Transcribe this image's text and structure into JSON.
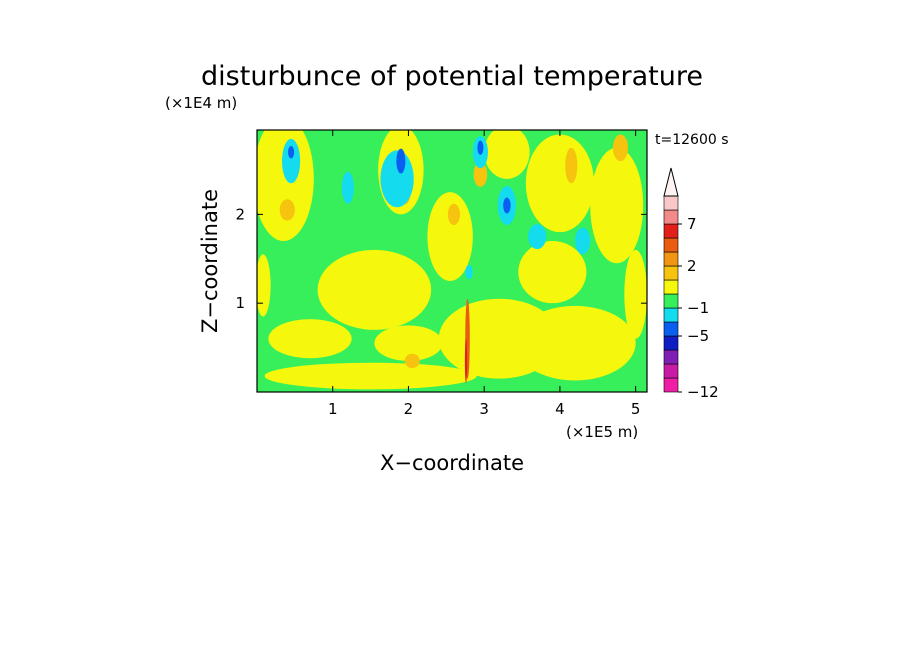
{
  "chart_data": {
    "type": "heatmap",
    "title": "disturbunce of potential temperature",
    "xlabel": "X−coordinate",
    "ylabel": "Z−coordinate",
    "x_unit": "(×1E5 m)",
    "y_unit": "(×1E4 m)",
    "time_label": "t=12600 s",
    "xlim": [
      0,
      5.15
    ],
    "ylim": [
      0,
      2.95
    ],
    "xticks": [
      "1",
      "2",
      "3",
      "4",
      "5"
    ],
    "xtick_values": [
      1,
      2,
      3,
      4,
      5
    ],
    "yticks": [
      "1",
      "2"
    ],
    "ytick_values": [
      1,
      2
    ],
    "colorbar": {
      "colors": [
        "#ee1fa6",
        "#c81ca5",
        "#7f1fb3",
        "#0f1dc5",
        "#0a5ff0",
        "#14dcee",
        "#36ef5b",
        "#f5f70c",
        "#f6c30f",
        "#f19512",
        "#ea5c10",
        "#e2201b",
        "#f38a8a",
        "#f8c7c7"
      ],
      "labels": [
        "−12",
        "−5",
        "−1",
        "2",
        "7"
      ],
      "label_levels": [
        0,
        4,
        6,
        9,
        12
      ],
      "extend": "max"
    },
    "regions": [
      {
        "kind": "ellipse",
        "cx": 1.55,
        "cy": 1.15,
        "rx": 0.75,
        "ry": 0.45,
        "level": 7
      },
      {
        "kind": "ellipse",
        "cx": 0.7,
        "cy": 0.6,
        "rx": 0.55,
        "ry": 0.22,
        "level": 7
      },
      {
        "kind": "ellipse",
        "cx": 2.0,
        "cy": 0.55,
        "rx": 0.45,
        "ry": 0.2,
        "level": 7
      },
      {
        "kind": "ellipse",
        "cx": 1.5,
        "cy": 0.18,
        "rx": 1.4,
        "ry": 0.15,
        "level": 7
      },
      {
        "kind": "ellipse",
        "cx": 3.2,
        "cy": 0.6,
        "rx": 0.8,
        "ry": 0.45,
        "level": 7
      },
      {
        "kind": "ellipse",
        "cx": 4.2,
        "cy": 0.55,
        "rx": 0.8,
        "ry": 0.42,
        "level": 7
      },
      {
        "kind": "ellipse",
        "cx": 3.9,
        "cy": 1.35,
        "rx": 0.45,
        "ry": 0.35,
        "level": 7
      },
      {
        "kind": "ellipse",
        "cx": 0.35,
        "cy": 2.4,
        "rx": 0.4,
        "ry": 0.7,
        "level": 7
      },
      {
        "kind": "ellipse",
        "cx": 0.08,
        "cy": 1.2,
        "rx": 0.1,
        "ry": 0.35,
        "level": 7
      },
      {
        "kind": "ellipse",
        "cx": 1.9,
        "cy": 2.5,
        "rx": 0.3,
        "ry": 0.5,
        "level": 7
      },
      {
        "kind": "ellipse",
        "cx": 2.55,
        "cy": 1.75,
        "rx": 0.3,
        "ry": 0.5,
        "level": 7
      },
      {
        "kind": "ellipse",
        "cx": 3.3,
        "cy": 2.7,
        "rx": 0.3,
        "ry": 0.3,
        "level": 7
      },
      {
        "kind": "ellipse",
        "cx": 4.0,
        "cy": 2.35,
        "rx": 0.45,
        "ry": 0.55,
        "level": 7
      },
      {
        "kind": "ellipse",
        "cx": 4.75,
        "cy": 2.1,
        "rx": 0.35,
        "ry": 0.65,
        "level": 7
      },
      {
        "kind": "ellipse",
        "cx": 5.0,
        "cy": 1.1,
        "rx": 0.15,
        "ry": 0.5,
        "level": 7
      },
      {
        "kind": "ellipse",
        "cx": 0.4,
        "cy": 2.05,
        "rx": 0.1,
        "ry": 0.12,
        "level": 8
      },
      {
        "kind": "ellipse",
        "cx": 1.95,
        "cy": 2.25,
        "rx": 0.08,
        "ry": 0.14,
        "level": 8
      },
      {
        "kind": "ellipse",
        "cx": 2.6,
        "cy": 2.0,
        "rx": 0.08,
        "ry": 0.12,
        "level": 8
      },
      {
        "kind": "ellipse",
        "cx": 2.95,
        "cy": 2.45,
        "rx": 0.09,
        "ry": 0.14,
        "level": 8
      },
      {
        "kind": "ellipse",
        "cx": 4.15,
        "cy": 2.55,
        "rx": 0.08,
        "ry": 0.2,
        "level": 8
      },
      {
        "kind": "ellipse",
        "cx": 4.8,
        "cy": 2.75,
        "rx": 0.1,
        "ry": 0.15,
        "level": 8
      },
      {
        "kind": "ellipse",
        "cx": 2.05,
        "cy": 0.35,
        "rx": 0.1,
        "ry": 0.08,
        "level": 8
      },
      {
        "kind": "ellipse",
        "cx": 0.45,
        "cy": 2.6,
        "rx": 0.12,
        "ry": 0.25,
        "level": 5
      },
      {
        "kind": "ellipse",
        "cx": 1.2,
        "cy": 2.3,
        "rx": 0.08,
        "ry": 0.18,
        "level": 5
      },
      {
        "kind": "ellipse",
        "cx": 1.85,
        "cy": 2.4,
        "rx": 0.22,
        "ry": 0.32,
        "level": 5
      },
      {
        "kind": "ellipse",
        "cx": 2.95,
        "cy": 2.7,
        "rx": 0.1,
        "ry": 0.18,
        "level": 5
      },
      {
        "kind": "ellipse",
        "cx": 3.3,
        "cy": 2.1,
        "rx": 0.12,
        "ry": 0.22,
        "level": 5
      },
      {
        "kind": "ellipse",
        "cx": 3.7,
        "cy": 1.75,
        "rx": 0.12,
        "ry": 0.14,
        "level": 5
      },
      {
        "kind": "ellipse",
        "cx": 4.3,
        "cy": 1.7,
        "rx": 0.1,
        "ry": 0.15,
        "level": 5
      },
      {
        "kind": "ellipse",
        "cx": 2.8,
        "cy": 1.35,
        "rx": 0.05,
        "ry": 0.08,
        "level": 5
      },
      {
        "kind": "ellipse",
        "cx": 0.45,
        "cy": 2.7,
        "rx": 0.04,
        "ry": 0.07,
        "level": 4
      },
      {
        "kind": "ellipse",
        "cx": 1.9,
        "cy": 2.6,
        "rx": 0.06,
        "ry": 0.14,
        "level": 4
      },
      {
        "kind": "ellipse",
        "cx": 3.3,
        "cy": 2.1,
        "rx": 0.05,
        "ry": 0.09,
        "level": 4
      },
      {
        "kind": "ellipse",
        "cx": 2.95,
        "cy": 2.75,
        "rx": 0.04,
        "ry": 0.08,
        "level": 4
      },
      {
        "kind": "ellipse",
        "cx": 2.78,
        "cy": 0.6,
        "rx": 0.03,
        "ry": 0.45,
        "level": 10
      },
      {
        "kind": "ellipse",
        "cx": 2.76,
        "cy": 0.35,
        "rx": 0.015,
        "ry": 0.25,
        "level": 11
      }
    ]
  }
}
